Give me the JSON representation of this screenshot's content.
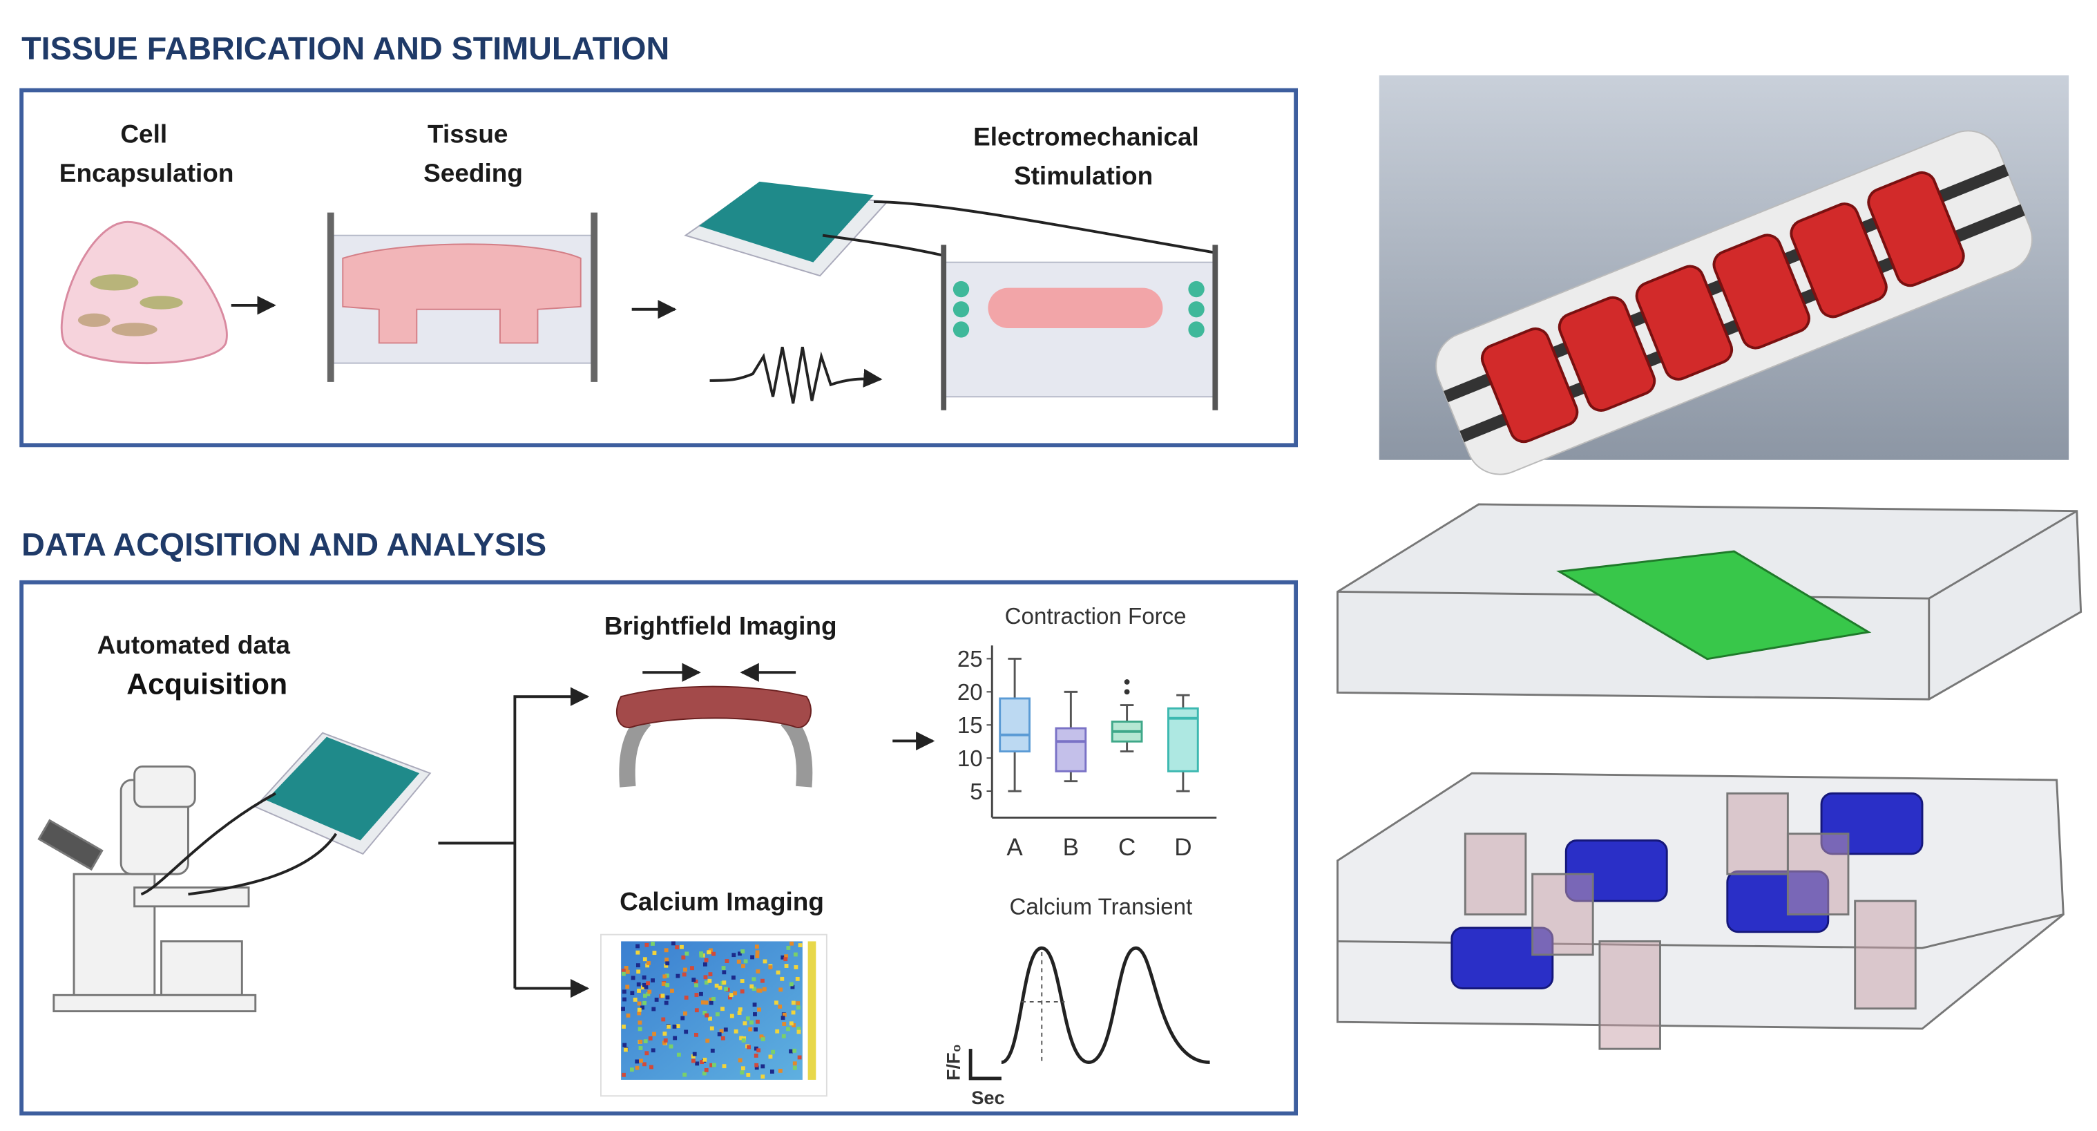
{
  "top": {
    "title": "TISSUE FABRICATION AND STIMULATION",
    "cell_encapsulation": [
      "Cell",
      "Encapsulation"
    ],
    "tissue_seeding": [
      "Tissue",
      "Seeding"
    ],
    "stimulation": [
      "Electromechanical",
      "Stimulation"
    ]
  },
  "bottom": {
    "title": "DATA ACQISITION AND ANALYSIS",
    "acquisition": [
      "Automated data",
      "Acquisition"
    ],
    "brightfield": "Brightfield Imaging",
    "calcium_imaging": "Calcium Imaging",
    "contraction": {
      "title": "Contraction Force",
      "categories": [
        "A",
        "B",
        "C",
        "D"
      ],
      "ylim": [
        1,
        27
      ],
      "yticks": [
        5,
        10,
        15,
        20,
        25
      ],
      "boxes": [
        {
          "min": 5,
          "q1": 11,
          "median": 13.5,
          "q3": 19,
          "max": 25,
          "fill": "#bcd9f2",
          "stroke": "#5b9bd5",
          "outliers": []
        },
        {
          "min": 6.5,
          "q1": 8,
          "median": 12.5,
          "q3": 14.5,
          "max": 20,
          "fill": "#c4c0ea",
          "stroke": "#7a72c6",
          "outliers": []
        },
        {
          "min": 11,
          "q1": 12.5,
          "median": 14,
          "q3": 15.5,
          "max": 18,
          "fill": "#b6e7d3",
          "stroke": "#3fa889",
          "outliers": [
            20,
            21.5
          ]
        },
        {
          "min": 5,
          "q1": 8,
          "median": 16,
          "q3": 17.5,
          "max": 19.5,
          "fill": "#aee8e2",
          "stroke": "#3cb8b0",
          "outliers": []
        }
      ]
    },
    "transient": {
      "title": "Calcium Transient",
      "y_label": "F/F₀",
      "x_label": "Sec"
    }
  }
}
